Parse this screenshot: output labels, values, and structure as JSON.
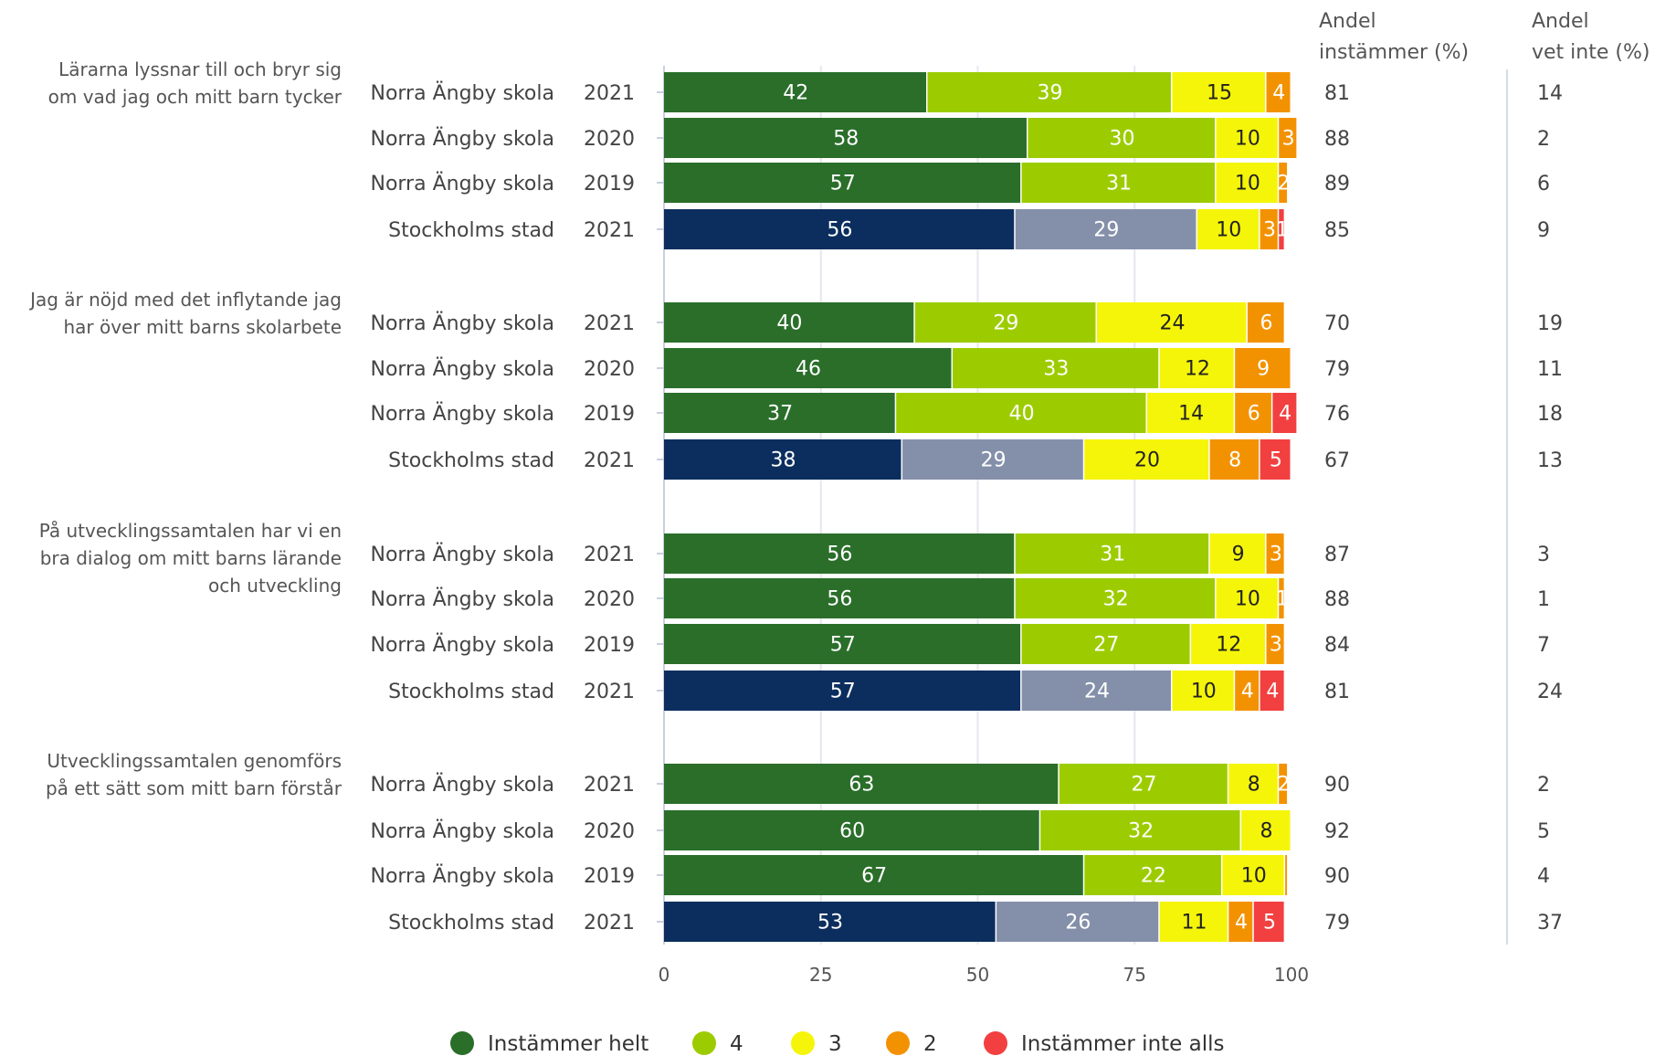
{
  "chart_data": {
    "type": "bar",
    "orientation": "horizontal-stacked",
    "xlim": [
      0,
      100
    ],
    "xticks": [
      "0",
      "25",
      "50",
      "75",
      "100"
    ],
    "grid": true,
    "legend_position": "bottom",
    "legend": [
      {
        "name": "Instämmer helt",
        "color": "#2a6e2a"
      },
      {
        "name": "4",
        "color": "#9ccc00"
      },
      {
        "name": "3",
        "color": "#f5f50a"
      },
      {
        "name": "2",
        "color": "#f39200"
      },
      {
        "name": "Instämmer inte alls",
        "color": "#f24040"
      }
    ],
    "city_colors": [
      "#0b2e5e",
      "#8490aa",
      "#f5f50a",
      "#f39200",
      "#f24040"
    ],
    "stat_headers": {
      "agree": [
        "Andel",
        "instämmer (%)"
      ],
      "dontknow": [
        "Andel",
        "vet inte (%)"
      ]
    },
    "groups": [
      {
        "question": [
          "Lärarna lyssnar till och bryr sig",
          "om vad jag och mitt barn tycker"
        ],
        "rows": [
          {
            "name": "Norra Ängby skola",
            "year": "2021",
            "values": [
              42,
              39,
              15,
              4,
              0
            ],
            "labels": [
              "42",
              "39",
              "15",
              "4",
              "0"
            ],
            "city": false,
            "agree": "81",
            "dontknow": "14"
          },
          {
            "name": "Norra Ängby skola",
            "year": "2020",
            "values": [
              58,
              30,
              10,
              3,
              0
            ],
            "labels": [
              "58",
              "30",
              "10",
              "3",
              "0"
            ],
            "city": false,
            "agree": "88",
            "dontknow": "2"
          },
          {
            "name": "Norra Ängby skola",
            "year": "2019",
            "values": [
              57,
              31,
              10,
              1.5,
              0
            ],
            "labels": [
              "57",
              "31",
              "10",
              "2",
              ""
            ],
            "city": false,
            "agree": "89",
            "dontknow": "6"
          },
          {
            "name": "Stockholms stad",
            "year": "2021",
            "values": [
              56,
              29,
              10,
              3,
              1
            ],
            "labels": [
              "56",
              "29",
              "10",
              "3",
              "1"
            ],
            "city": true,
            "agree": "85",
            "dontknow": "9"
          }
        ]
      },
      {
        "question": [
          "Jag är nöjd med det inflytande jag",
          "har över mitt barns skolarbete"
        ],
        "rows": [
          {
            "name": "Norra Ängby skola",
            "year": "2021",
            "values": [
              40,
              29,
              24,
              6,
              0
            ],
            "labels": [
              "40",
              "29",
              "24",
              "6",
              "0"
            ],
            "city": false,
            "agree": "70",
            "dontknow": "19"
          },
          {
            "name": "Norra Ängby skola",
            "year": "2020",
            "values": [
              46,
              33,
              12,
              9,
              0
            ],
            "labels": [
              "46",
              "33",
              "12",
              "9",
              "0"
            ],
            "city": false,
            "agree": "79",
            "dontknow": "11"
          },
          {
            "name": "Norra Ängby skola",
            "year": "2019",
            "values": [
              37,
              40,
              14,
              6,
              4
            ],
            "labels": [
              "37",
              "40",
              "14",
              "6",
              "4"
            ],
            "city": false,
            "agree": "76",
            "dontknow": "18"
          },
          {
            "name": "Stockholms stad",
            "year": "2021",
            "values": [
              38,
              29,
              20,
              8,
              5
            ],
            "labels": [
              "38",
              "29",
              "20",
              "8",
              "5"
            ],
            "city": true,
            "agree": "67",
            "dontknow": "13"
          }
        ]
      },
      {
        "question": [
          "På utvecklingssamtalen har vi en",
          "bra dialog om mitt barns lärande",
          "och utveckling"
        ],
        "rows": [
          {
            "name": "Norra Ängby skola",
            "year": "2021",
            "values": [
              56,
              31,
              9,
              3,
              0
            ],
            "labels": [
              "56",
              "31",
              "9",
              "3",
              "0"
            ],
            "city": false,
            "agree": "87",
            "dontknow": "3"
          },
          {
            "name": "Norra Ängby skola",
            "year": "2020",
            "values": [
              56,
              32,
              10,
              1,
              0
            ],
            "labels": [
              "56",
              "32",
              "10",
              "1",
              ""
            ],
            "city": false,
            "agree": "88",
            "dontknow": "1"
          },
          {
            "name": "Norra Ängby skola",
            "year": "2019",
            "values": [
              57,
              27,
              12,
              3,
              0
            ],
            "labels": [
              "57",
              "27",
              "12",
              "3",
              "0"
            ],
            "city": false,
            "agree": "84",
            "dontknow": "7"
          },
          {
            "name": "Stockholms stad",
            "year": "2021",
            "values": [
              57,
              24,
              10,
              4,
              4
            ],
            "labels": [
              "57",
              "24",
              "10",
              "4",
              "4"
            ],
            "city": true,
            "agree": "81",
            "dontknow": "24"
          }
        ]
      },
      {
        "question": [
          "Utvecklingssamtalen genomförs",
          "på ett sätt som mitt barn förstår"
        ],
        "rows": [
          {
            "name": "Norra Ängby skola",
            "year": "2021",
            "values": [
              63,
              27,
              8,
              1.5,
              0
            ],
            "labels": [
              "63",
              "27",
              "8",
              "2",
              ""
            ],
            "city": false,
            "agree": "90",
            "dontknow": "2"
          },
          {
            "name": "Norra Ängby skola",
            "year": "2020",
            "values": [
              60,
              32,
              8,
              0,
              0
            ],
            "labels": [
              "60",
              "32",
              "8",
              "",
              ""
            ],
            "city": false,
            "agree": "92",
            "dontknow": "5"
          },
          {
            "name": "Norra Ängby skola",
            "year": "2019",
            "values": [
              67,
              22,
              10,
              0.5,
              0
            ],
            "labels": [
              "67",
              "22",
              "10",
              "",
              ""
            ],
            "city": false,
            "agree": "90",
            "dontknow": "4"
          },
          {
            "name": "Stockholms stad",
            "year": "2021",
            "values": [
              53,
              26,
              11,
              4,
              5
            ],
            "labels": [
              "53",
              "26",
              "11",
              "4",
              "5"
            ],
            "city": true,
            "agree": "79",
            "dontknow": "37"
          }
        ]
      }
    ]
  }
}
